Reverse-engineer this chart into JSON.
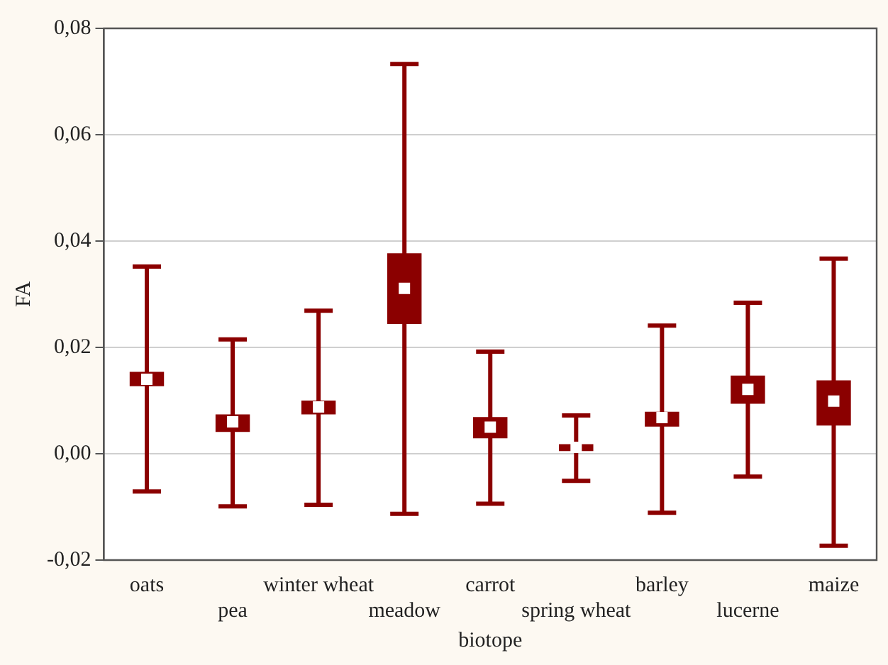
{
  "chart_data": {
    "type": "box",
    "xlabel": "biotope",
    "ylabel": "FA",
    "categories": [
      "oats",
      "pea",
      "winter wheat",
      "meadow",
      "carrot",
      "spring wheat",
      "barley",
      "lucerne",
      "maize"
    ],
    "color": "#8b0000",
    "boxes": [
      {
        "low": -0.0071,
        "q1": 0.0127,
        "median": 0.014,
        "q3": 0.0154,
        "high": 0.0352
      },
      {
        "low": -0.0099,
        "q1": 0.0041,
        "median": 0.006,
        "q3": 0.0074,
        "high": 0.0215
      },
      {
        "low": -0.0096,
        "q1": 0.0074,
        "median": 0.0088,
        "q3": 0.01,
        "high": 0.0269
      },
      {
        "low": -0.0113,
        "q1": 0.0244,
        "median": 0.0311,
        "q3": 0.0377,
        "high": 0.0733
      },
      {
        "low": -0.0094,
        "q1": 0.0029,
        "median": 0.005,
        "q3": 0.0069,
        "high": 0.0192
      },
      {
        "low": -0.0051,
        "q1": 0.0005,
        "median": 0.0012,
        "q3": 0.0018,
        "high": 0.0072
      },
      {
        "low": -0.0111,
        "q1": 0.0051,
        "median": 0.0068,
        "q3": 0.0079,
        "high": 0.0241
      },
      {
        "low": -0.0043,
        "q1": 0.0094,
        "median": 0.0121,
        "q3": 0.0147,
        "high": 0.0284
      },
      {
        "low": -0.0173,
        "q1": 0.0053,
        "median": 0.0099,
        "q3": 0.0138,
        "high": 0.0367
      }
    ],
    "ylim": [
      -0.02,
      0.08
    ],
    "yticks": [
      {
        "value": -0.02,
        "label": "-0,02"
      },
      {
        "value": 0,
        "label": "0,00"
      },
      {
        "value": 0.02,
        "label": "0,02"
      },
      {
        "value": 0.04,
        "label": "0,04"
      },
      {
        "value": 0.06,
        "label": "0,06"
      },
      {
        "value": 0.08,
        "label": "0,08"
      }
    ],
    "grid": "y",
    "legend": false
  }
}
